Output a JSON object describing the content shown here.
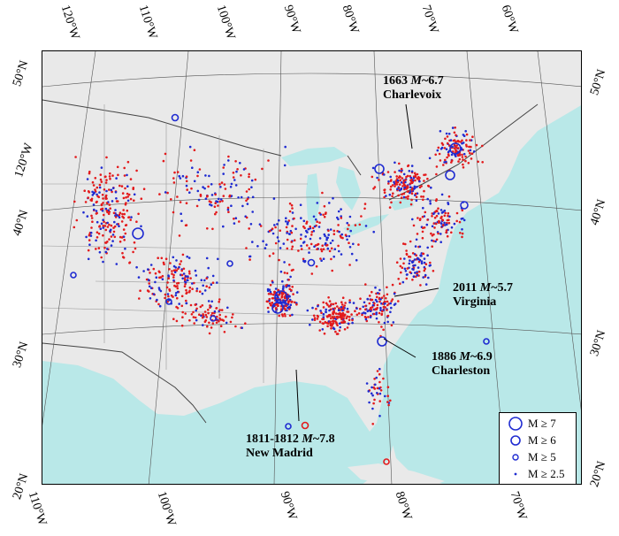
{
  "map": {
    "lat_labels_left": [
      "50°N",
      "120°W",
      "40°N",
      "30°N",
      "20°N"
    ],
    "lat_labels_right": [
      "50°N",
      "40°N",
      "30°N",
      "20°N"
    ],
    "lon_labels_top": [
      "120°W",
      "110°W",
      "100°W",
      "90°W",
      "80°W",
      "70°W",
      "60°W"
    ],
    "lon_labels_bottom": [
      "110°W",
      "100°W",
      "90°W",
      "80°W",
      "70°W"
    ],
    "colors": {
      "land": "#e9e9e9",
      "ocean": "#b9e8e8",
      "historic": "#e31a1c",
      "instrumental": "#1f2bd1",
      "border": "#444444"
    }
  },
  "annotations": [
    {
      "id": "charlevoix",
      "line1_prefix": "1663 ",
      "line1_mag": "M",
      "line1_suffix": "~6.7",
      "line2": "Charlevoix"
    },
    {
      "id": "virginia",
      "line1_prefix": "2011 ",
      "line1_mag": "M",
      "line1_suffix": "~5.7",
      "line2": "Virginia"
    },
    {
      "id": "charleston",
      "line1_prefix": "1886 ",
      "line1_mag": "M",
      "line1_suffix": "~6.9",
      "line2": "Charleston"
    },
    {
      "id": "new-madrid",
      "line1_prefix": "1811-1812 ",
      "line1_mag": "M",
      "line1_suffix": "~7.8",
      "line2": "New Madrid"
    }
  ],
  "legend": {
    "items": [
      {
        "label": "M ≥ 7",
        "level": 7
      },
      {
        "label": "M ≥ 6",
        "level": 6
      },
      {
        "label": "M ≥ 5",
        "level": 5
      },
      {
        "label": "M ≥ 2.5",
        "level": 2.5
      }
    ]
  }
}
